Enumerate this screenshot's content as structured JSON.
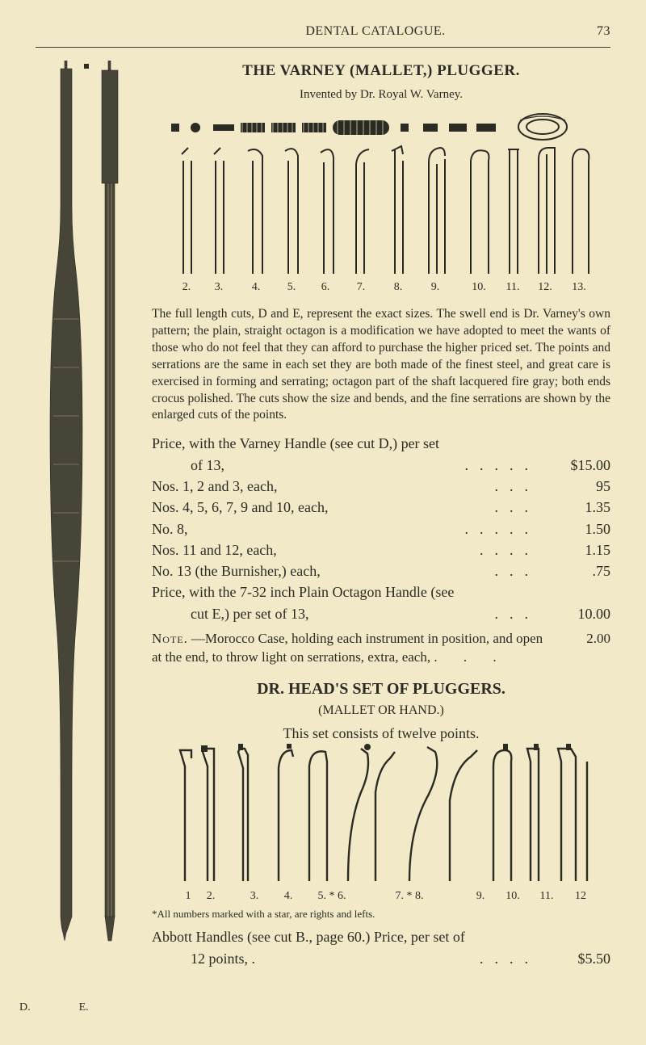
{
  "page": {
    "running_title": "DENTAL CATALOGUE.",
    "page_number": "73"
  },
  "varney": {
    "title": "THE VARNEY (MALLET,) PLUGGER.",
    "byline": "Invented by Dr. Royal W. Varney.",
    "fig_numbers": [
      "2.",
      "3.",
      "4.",
      "5.",
      "6.",
      "7.",
      "8.",
      "9.",
      "10.",
      "11.",
      "12.",
      "13."
    ],
    "paragraph": "The full length cuts, D and E, represent the exact sizes. The swell end is Dr. Varney's own pattern; the plain, straight octagon is a modification we have adopted to meet the wants of those who do not feel that they can afford to purchase the higher priced set. The points and serrations are the same in each set they are both made of the finest steel, and great care is exercised in forming and serrating; octagon part of the shaft lacquered fire gray; both ends crocus polished. The cuts show the size and bends, and the fine serrations are shown by the enlarged cuts of the points."
  },
  "prices": {
    "head": "Price, with the Varney Handle (see cut D,) per set",
    "rows": [
      {
        "label": "of 13,",
        "dots": ".....",
        "amount": "$15.00",
        "indent": true
      },
      {
        "label": "Nos. 1, 2 and 3, each,",
        "dots": "...",
        "amount": "95"
      },
      {
        "label": "Nos. 4, 5, 6, 7, 9 and 10, each,",
        "dots": "...",
        "amount": "1.35"
      },
      {
        "label": "No. 8,",
        "dots": ".....",
        "amount": "1.50"
      },
      {
        "label": "Nos. 11 and 12, each,",
        "dots": "....",
        "amount": "1.15"
      },
      {
        "label": "No. 13 (the Burnisher,) each,",
        "dots": "...",
        "amount": ".75"
      },
      {
        "label": "Price, with the 7-32 inch Plain Octagon Handle (see",
        "dots": "",
        "amount": ""
      },
      {
        "label": "cut E,) per set of 13,",
        "dots": "...",
        "amount": "10.00",
        "indent": true
      }
    ],
    "note_tag": "Note.",
    "note_body": "—Morocco Case, holding each instrument in position, and open at the end, to throw light on serrations, extra, each,",
    "note_amount": "2.00"
  },
  "head_set": {
    "title": "DR. HEAD'S SET OF PLUGGERS.",
    "subtitle": "(MALLET OR HAND.)",
    "line": "This set consists of twelve points.",
    "fig_numbers": [
      "1",
      "2.",
      "3.",
      "4.",
      "5. * 6.",
      "7. * 8.",
      "9.",
      "10.",
      "11.",
      "12"
    ],
    "footnote": "*All numbers marked with a star, are rights and lefts.",
    "bottom_line_label": "Abbott Handles (see cut B., page 60.) Price, per set of",
    "bottom_line_2": "12 points,   .",
    "bottom_dots": "....",
    "bottom_amount": "$5.50"
  },
  "side_labels": {
    "d": "D.",
    "e": "E."
  },
  "colors": {
    "ink": "#2b2b24",
    "paper": "#f2e9c8",
    "engrave_fill": "#474438"
  }
}
